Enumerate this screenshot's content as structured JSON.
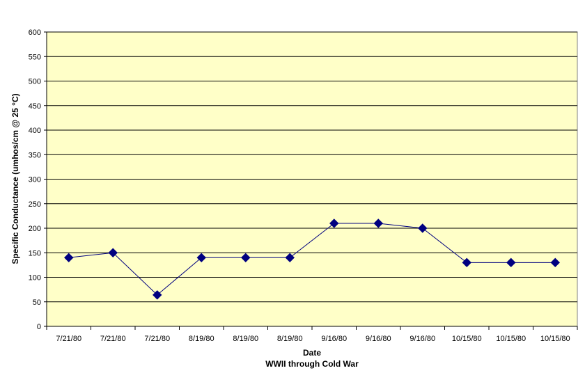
{
  "chart_data": {
    "type": "line",
    "title": "",
    "xlabel": "Date",
    "subtitle_below": "WWII through Cold War",
    "ylabel": "Specific Conductance (umhos/cm @ 25 °C)",
    "ylim": [
      0,
      600
    ],
    "yticks": [
      0,
      50,
      100,
      150,
      200,
      250,
      300,
      350,
      400,
      450,
      500,
      550,
      600
    ],
    "grid": true,
    "categories": [
      "7/21/80",
      "7/21/80",
      "7/21/80",
      "8/19/80",
      "8/19/80",
      "8/19/80",
      "9/16/80",
      "9/16/80",
      "9/16/80",
      "10/15/80",
      "10/15/80",
      "10/15/80"
    ],
    "series": [
      {
        "values": [
          140,
          150,
          64,
          140,
          140,
          140,
          210,
          210,
          200,
          130,
          130,
          130
        ]
      }
    ],
    "colors": {
      "plot_background": "#FFFFC8",
      "gridline": "#000000",
      "line": "#00007F",
      "marker": "#000080"
    }
  }
}
